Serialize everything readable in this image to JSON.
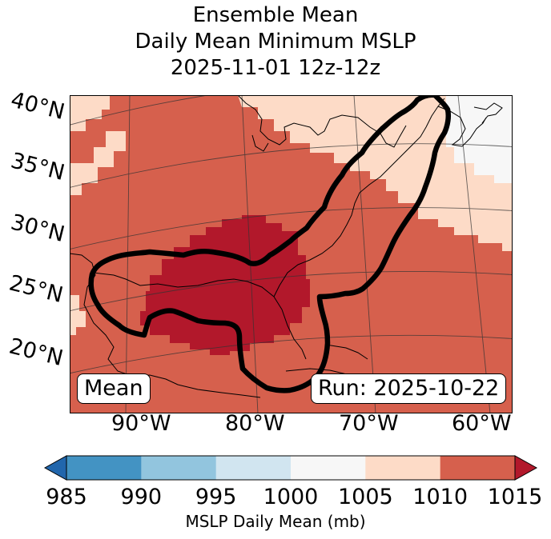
{
  "title": {
    "line1": "Ensemble Mean",
    "line2": "Daily Mean Minimum MSLP",
    "line3": "2025-11-01 12z-12z"
  },
  "lat_labels": [
    "40°N",
    "35°N",
    "30°N",
    "25°N",
    "20°N"
  ],
  "lon_labels": [
    "90°W",
    "80°W",
    "70°W",
    "60°W"
  ],
  "box_mean": "Mean",
  "box_run": "Run: 2025-10-22",
  "colorbar": {
    "ticks": [
      "985",
      "990",
      "995",
      "1000",
      "1005",
      "1010",
      "1015"
    ],
    "colors": [
      "#2166ac",
      "#4393c3",
      "#92c5de",
      "#d1e5f0",
      "#f7f7f7",
      "#fddbc7",
      "#d6604d",
      "#b2182b"
    ],
    "label": "MSLP Daily Mean (mb)"
  }
}
